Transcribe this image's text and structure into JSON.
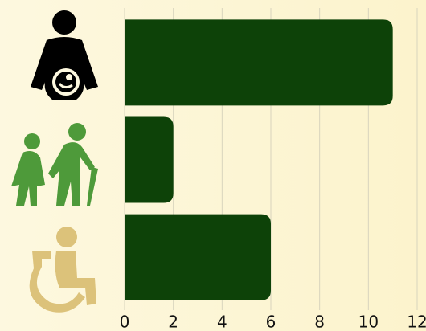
{
  "chart_data": {
    "type": "bar",
    "orientation": "horizontal",
    "categories": [
      null,
      null,
      null
    ],
    "values": [
      11,
      2,
      6
    ],
    "color": "#0d4208",
    "xlim": [
      0,
      12
    ],
    "xticks": [
      0,
      2,
      4,
      6,
      8,
      10,
      12
    ],
    "grid": true
  }
}
